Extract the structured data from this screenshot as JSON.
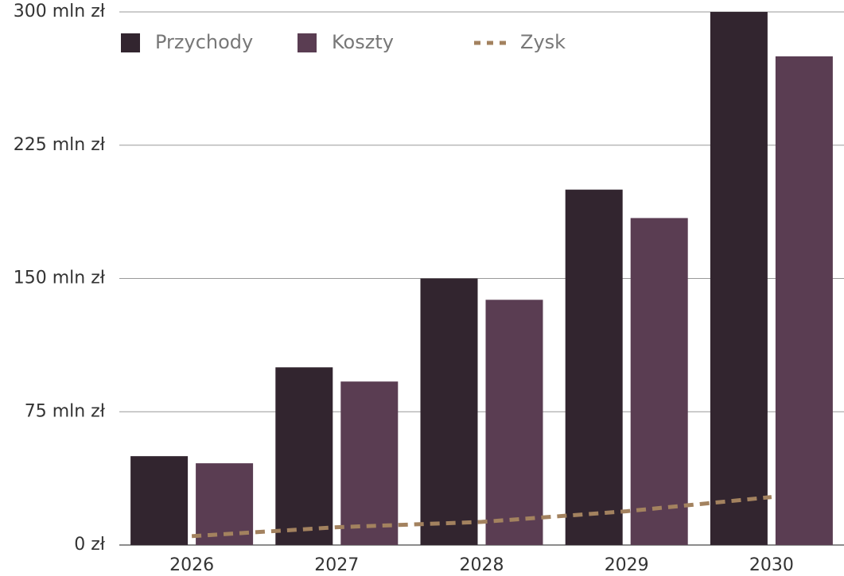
{
  "chart_data": {
    "type": "bar",
    "categories": [
      "2026",
      "2027",
      "2028",
      "2029",
      "2030"
    ],
    "series": [
      {
        "name": "Przychody",
        "type": "bar",
        "color": "#32252f",
        "values": [
          50,
          100,
          150,
          200,
          300
        ]
      },
      {
        "name": "Koszty",
        "type": "bar",
        "color": "#5a3d52",
        "values": [
          46,
          92,
          138,
          184,
          275
        ]
      },
      {
        "name": "Zysk",
        "type": "line",
        "dashed": true,
        "color": "#a3825f",
        "values": [
          5,
          10,
          13,
          19,
          27
        ]
      }
    ],
    "ylim": [
      0,
      300
    ],
    "yticks": [
      {
        "value": 0,
        "label": "0 zł"
      },
      {
        "value": 75,
        "label": "75 mln zł"
      },
      {
        "value": 150,
        "label": "150 mln zł"
      },
      {
        "value": 225,
        "label": "225 mln zł"
      },
      {
        "value": 300,
        "label": "300 mln zł"
      }
    ],
    "grid": true,
    "legend": "top-left"
  }
}
